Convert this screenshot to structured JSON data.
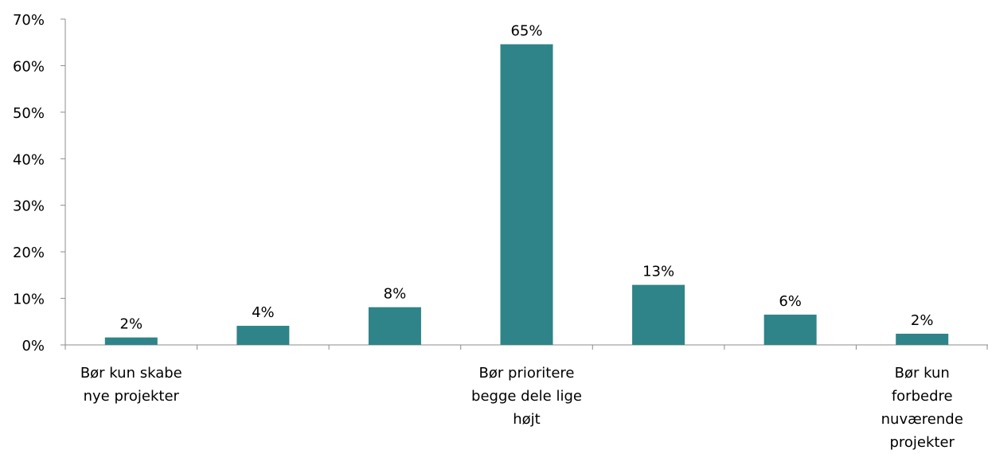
{
  "chart_data": {
    "type": "bar",
    "categories": [
      "Bør kun skabe nye projekter",
      "",
      "",
      "Bør prioritere begge dele lige højt",
      "",
      "",
      "Bør kun forbedre nuværende projekter"
    ],
    "category_label_lines": [
      [
        "Bør kun skabe",
        "nye projekter"
      ],
      [],
      [],
      [
        "Bør prioritere",
        "begge dele lige",
        "højt"
      ],
      [],
      [],
      [
        "Bør kun",
        "forbedre",
        "nuværende",
        "projekter"
      ]
    ],
    "values": [
      1.6,
      4.1,
      8.1,
      64.6,
      12.9,
      6.5,
      2.4
    ],
    "data_labels": [
      "2%",
      "4%",
      "8%",
      "65%",
      "13%",
      "6%",
      "2%"
    ],
    "y_ticks": [
      "0%",
      "10%",
      "20%",
      "30%",
      "40%",
      "50%",
      "60%",
      "70%"
    ],
    "ylim": [
      0,
      70
    ],
    "bar_color": "#2e8489",
    "title": "",
    "xlabel": "",
    "ylabel": "",
    "grid": false,
    "legend": "none"
  }
}
